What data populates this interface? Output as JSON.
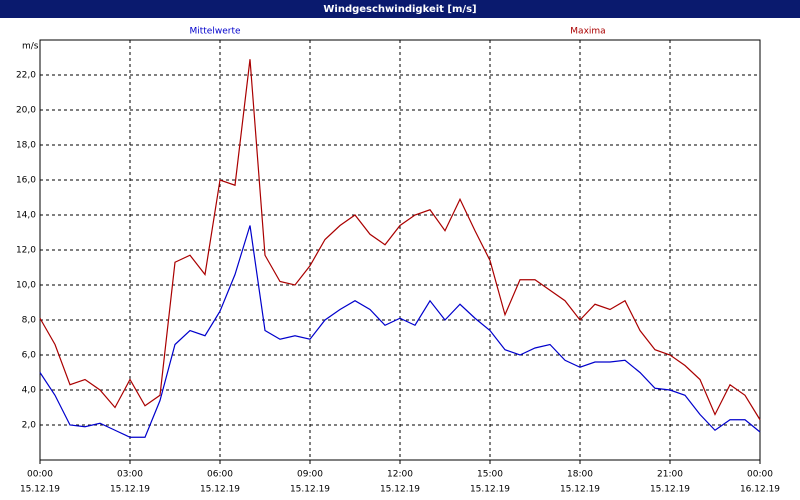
{
  "chart_data": {
    "type": "line",
    "title": "Windgeschwindigkeit [m/s]",
    "y_unit": "m/s",
    "x": [
      0,
      0.5,
      1,
      1.5,
      2,
      2.5,
      3,
      3.5,
      4,
      4.5,
      5,
      5.5,
      6,
      6.5,
      7,
      7.5,
      8,
      8.5,
      9,
      9.5,
      10,
      10.5,
      11,
      11.5,
      12,
      12.5,
      13,
      13.5,
      14,
      14.5,
      15,
      15.5,
      16,
      16.5,
      17,
      17.5,
      18,
      18.5,
      19,
      19.5,
      20,
      20.5,
      21,
      21.5,
      22,
      22.5,
      23,
      23.5,
      24
    ],
    "series": [
      {
        "name": "Mittelwerte",
        "color": "#0000cc",
        "values": [
          5.0,
          3.7,
          2.0,
          1.9,
          2.1,
          1.7,
          1.3,
          1.3,
          3.4,
          6.6,
          7.4,
          7.1,
          8.5,
          10.6,
          13.4,
          7.4,
          6.9,
          7.1,
          6.9,
          8.0,
          8.6,
          9.1,
          8.6,
          7.7,
          8.1,
          7.7,
          9.1,
          8.0,
          8.9,
          8.1,
          7.4,
          6.3,
          6.0,
          6.4,
          6.6,
          5.7,
          5.3,
          5.6,
          5.6,
          5.7,
          5.0,
          4.1,
          4.0,
          3.7,
          2.6,
          1.7,
          2.3,
          2.3,
          1.6
        ]
      },
      {
        "name": "Maxima",
        "color": "#aa0000",
        "values": [
          8.1,
          6.6,
          4.3,
          4.6,
          4.0,
          3.0,
          4.6,
          3.1,
          3.7,
          11.3,
          11.7,
          10.6,
          16.0,
          15.7,
          22.9,
          11.7,
          10.2,
          10.0,
          11.1,
          12.6,
          13.4,
          14.0,
          12.9,
          12.3,
          13.4,
          14.0,
          14.3,
          13.1,
          14.9,
          13.1,
          11.4,
          8.3,
          10.3,
          10.3,
          9.7,
          9.1,
          8.0,
          8.9,
          8.6,
          9.1,
          7.4,
          6.3,
          6.0,
          5.4,
          4.6,
          2.6,
          4.3,
          3.7,
          2.3
        ]
      }
    ],
    "xlim": [
      0,
      24
    ],
    "xticks": [
      {
        "value": 0,
        "label": "00:00"
      },
      {
        "value": 3,
        "label": "03:00"
      },
      {
        "value": 6,
        "label": "06:00"
      },
      {
        "value": 9,
        "label": "09:00"
      },
      {
        "value": 12,
        "label": "12:00"
      },
      {
        "value": 15,
        "label": "15:00"
      },
      {
        "value": 18,
        "label": "18:00"
      },
      {
        "value": 21,
        "label": "21:00"
      },
      {
        "value": 24,
        "label": "00:00"
      }
    ],
    "xtick_dates": [
      "15.12.19",
      "15.12.19",
      "15.12.19",
      "15.12.19",
      "15.12.19",
      "15.12.19",
      "15.12.19",
      "15.12.19",
      "16.12.19"
    ],
    "ylim": [
      0,
      24
    ],
    "yticks": [
      {
        "value": 2,
        "label": "2,0"
      },
      {
        "value": 4,
        "label": "4,0"
      },
      {
        "value": 6,
        "label": "6,0"
      },
      {
        "value": 8,
        "label": "8,0"
      },
      {
        "value": 10,
        "label": "10,0"
      },
      {
        "value": 12,
        "label": "12,0"
      },
      {
        "value": 14,
        "label": "14,0"
      },
      {
        "value": 16,
        "label": "16,0"
      },
      {
        "value": 18,
        "label": "18,0"
      },
      {
        "value": 20,
        "label": "20,0"
      },
      {
        "value": 22,
        "label": "22,0"
      }
    ],
    "grid": true
  }
}
